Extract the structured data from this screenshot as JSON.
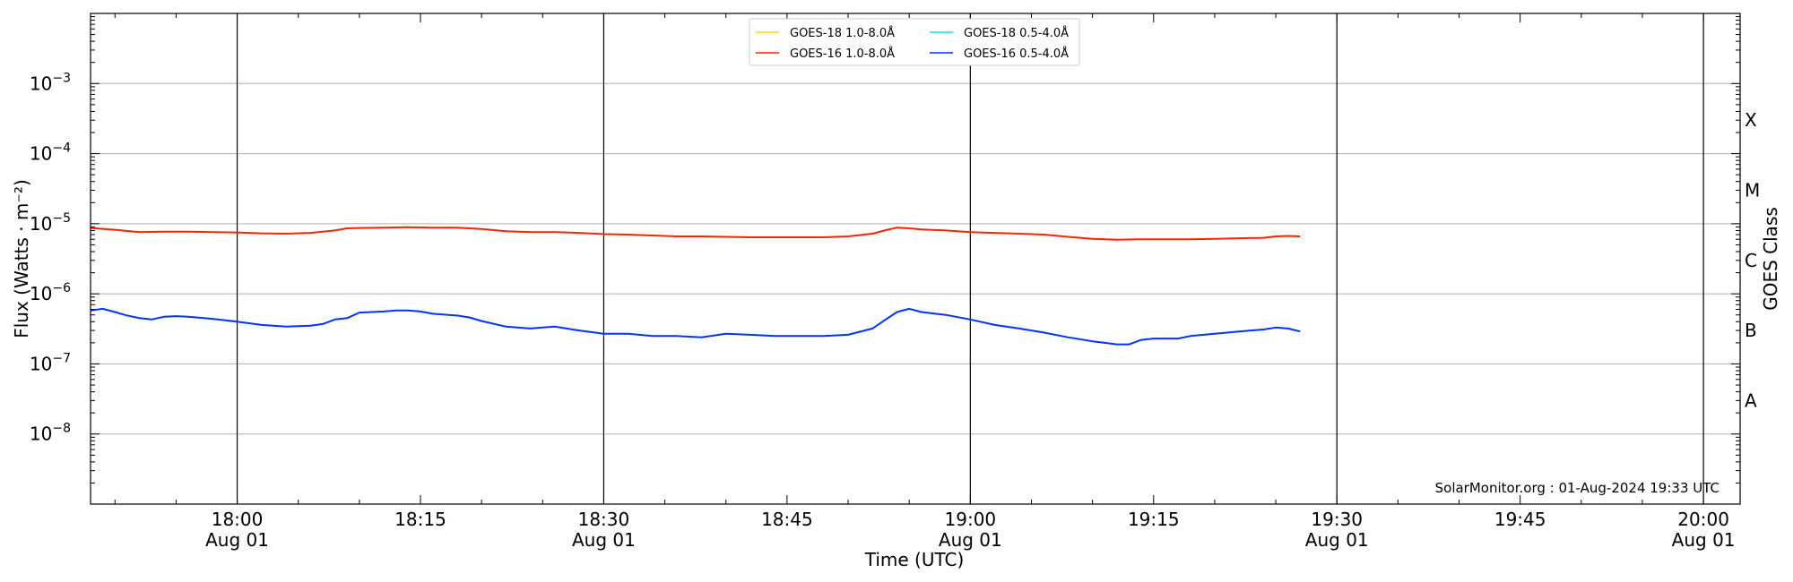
{
  "chart_data": {
    "type": "line",
    "xlabel": "Time (UTC)",
    "ylabel": "Flux (Watts · m⁻²)",
    "right_axis_label": "GOES Class",
    "credit": "SolarMonitor.org : 01-Aug-2024 19:33 UTC",
    "y_scale": "log",
    "ylim": [
      1e-09,
      0.01
    ],
    "xlim": [
      "2024-08-01 17:48",
      "2024-08-01 20:03"
    ],
    "y_ticks": [
      {
        "value": 0.001,
        "base": "10",
        "exp": "−3"
      },
      {
        "value": 0.0001,
        "base": "10",
        "exp": "−4"
      },
      {
        "value": 1e-05,
        "base": "10",
        "exp": "−5"
      },
      {
        "value": 1e-06,
        "base": "10",
        "exp": "−6"
      },
      {
        "value": 1e-07,
        "base": "10",
        "exp": "−7"
      },
      {
        "value": 1e-08,
        "base": "10",
        "exp": "−8"
      }
    ],
    "x_ticks": [
      {
        "time": "18:00",
        "label": "18:00",
        "date": "Aug 01"
      },
      {
        "time": "18:15",
        "label": "18:15",
        "date": ""
      },
      {
        "time": "18:30",
        "label": "18:30",
        "date": "Aug 01"
      },
      {
        "time": "18:45",
        "label": "18:45",
        "date": ""
      },
      {
        "time": "19:00",
        "label": "19:00",
        "date": "Aug 01"
      },
      {
        "time": "19:15",
        "label": "19:15",
        "date": ""
      },
      {
        "time": "19:30",
        "label": "19:30",
        "date": "Aug 01"
      },
      {
        "time": "19:45",
        "label": "19:45",
        "date": ""
      },
      {
        "time": "20:00",
        "label": "20:00",
        "date": "Aug 01"
      }
    ],
    "vertical_lines": [
      "18:00",
      "18:30",
      "19:00",
      "19:30",
      "20:00"
    ],
    "goes_classes": [
      {
        "label": "X",
        "flux": 0.0003
      },
      {
        "label": "M",
        "flux": 3e-05
      },
      {
        "label": "C",
        "flux": 3e-06
      },
      {
        "label": "B",
        "flux": 3e-07
      },
      {
        "label": "A",
        "flux": 3e-08
      }
    ],
    "grid": true,
    "legend_position": "top-center",
    "series": [
      {
        "name": "GOES-18 1.0-8.0Å",
        "color": "#ffd700",
        "times": [],
        "values": []
      },
      {
        "name": "GOES-16 1.0-8.0Å",
        "color": "#ff2200",
        "times": [
          "17:48",
          "17:50",
          "17:52",
          "17:54",
          "17:56",
          "17:58",
          "18:00",
          "18:02",
          "18:04",
          "18:06",
          "18:08",
          "18:09",
          "18:10",
          "18:12",
          "18:14",
          "18:16",
          "18:18",
          "18:20",
          "18:22",
          "18:24",
          "18:26",
          "18:28",
          "18:30",
          "18:32",
          "18:34",
          "18:36",
          "18:38",
          "18:40",
          "18:42",
          "18:44",
          "18:46",
          "18:48",
          "18:50",
          "18:52",
          "18:53",
          "18:54",
          "18:55",
          "18:56",
          "18:58",
          "19:00",
          "19:02",
          "19:04",
          "19:06",
          "19:08",
          "19:10",
          "19:12",
          "19:14",
          "19:16",
          "19:18",
          "19:20",
          "19:22",
          "19:24",
          "19:25",
          "19:26",
          "19:27"
        ],
        "values": [
          8.7e-06,
          8.2e-06,
          7.6e-06,
          7.7e-06,
          7.7e-06,
          7.6e-06,
          7.5e-06,
          7.3e-06,
          7.2e-06,
          7.4e-06,
          8e-06,
          8.6e-06,
          8.7e-06,
          8.8e-06,
          8.9e-06,
          8.8e-06,
          8.8e-06,
          8.4e-06,
          7.8e-06,
          7.6e-06,
          7.6e-06,
          7.4e-06,
          7.1e-06,
          7e-06,
          6.8e-06,
          6.6e-06,
          6.6e-06,
          6.5e-06,
          6.4e-06,
          6.4e-06,
          6.4e-06,
          6.4e-06,
          6.6e-06,
          7.2e-06,
          8e-06,
          8.8e-06,
          8.6e-06,
          8.3e-06,
          8e-06,
          7.6e-06,
          7.4e-06,
          7.2e-06,
          7e-06,
          6.5e-06,
          6.1e-06,
          5.9e-06,
          6e-06,
          6e-06,
          6e-06,
          6.1e-06,
          6.2e-06,
          6.3e-06,
          6.6e-06,
          6.7e-06,
          6.6e-06
        ]
      },
      {
        "name": "GOES-18 0.5-4.0Å",
        "color": "#00e5ee",
        "times": [],
        "values": []
      },
      {
        "name": "GOES-16 0.5-4.0Å",
        "color": "#0033ff",
        "times": [
          "17:48",
          "17:49",
          "17:50",
          "17:51",
          "17:52",
          "17:53",
          "17:54",
          "17:55",
          "17:56",
          "17:58",
          "18:00",
          "18:02",
          "18:04",
          "18:06",
          "18:07",
          "18:08",
          "18:09",
          "18:10",
          "18:11",
          "18:12",
          "18:13",
          "18:14",
          "18:15",
          "18:16",
          "18:18",
          "18:19",
          "18:20",
          "18:22",
          "18:24",
          "18:25",
          "18:26",
          "18:28",
          "18:30",
          "18:32",
          "18:34",
          "18:36",
          "18:38",
          "18:40",
          "18:42",
          "18:44",
          "18:46",
          "18:48",
          "18:50",
          "18:52",
          "18:53",
          "18:54",
          "18:55",
          "18:56",
          "18:58",
          "19:00",
          "19:02",
          "19:04",
          "19:06",
          "19:08",
          "19:10",
          "19:11",
          "19:12",
          "19:13",
          "19:14",
          "19:15",
          "19:16",
          "19:17",
          "19:18",
          "19:20",
          "19:22",
          "19:24",
          "19:25",
          "19:26",
          "19:27"
        ],
        "values": [
          5.8e-07,
          6.1e-07,
          5.5e-07,
          4.9e-07,
          4.5e-07,
          4.3e-07,
          4.7e-07,
          4.8e-07,
          4.7e-07,
          4.4e-07,
          4e-07,
          3.6e-07,
          3.4e-07,
          3.5e-07,
          3.7e-07,
          4.3e-07,
          4.5e-07,
          5.4e-07,
          5.5e-07,
          5.6e-07,
          5.8e-07,
          5.8e-07,
          5.6e-07,
          5.2e-07,
          4.9e-07,
          4.6e-07,
          4.1e-07,
          3.4e-07,
          3.2e-07,
          3.3e-07,
          3.4e-07,
          3e-07,
          2.7e-07,
          2.7e-07,
          2.5e-07,
          2.5e-07,
          2.4e-07,
          2.7e-07,
          2.6e-07,
          2.5e-07,
          2.5e-07,
          2.5e-07,
          2.6e-07,
          3.2e-07,
          4.2e-07,
          5.5e-07,
          6.1e-07,
          5.5e-07,
          5e-07,
          4.3e-07,
          3.6e-07,
          3.2e-07,
          2.8e-07,
          2.4e-07,
          2.1e-07,
          2e-07,
          1.9e-07,
          1.9e-07,
          2.2e-07,
          2.3e-07,
          2.3e-07,
          2.3e-07,
          2.5e-07,
          2.7e-07,
          2.9e-07,
          3.1e-07,
          3.3e-07,
          3.2e-07,
          2.9e-07
        ]
      }
    ]
  }
}
